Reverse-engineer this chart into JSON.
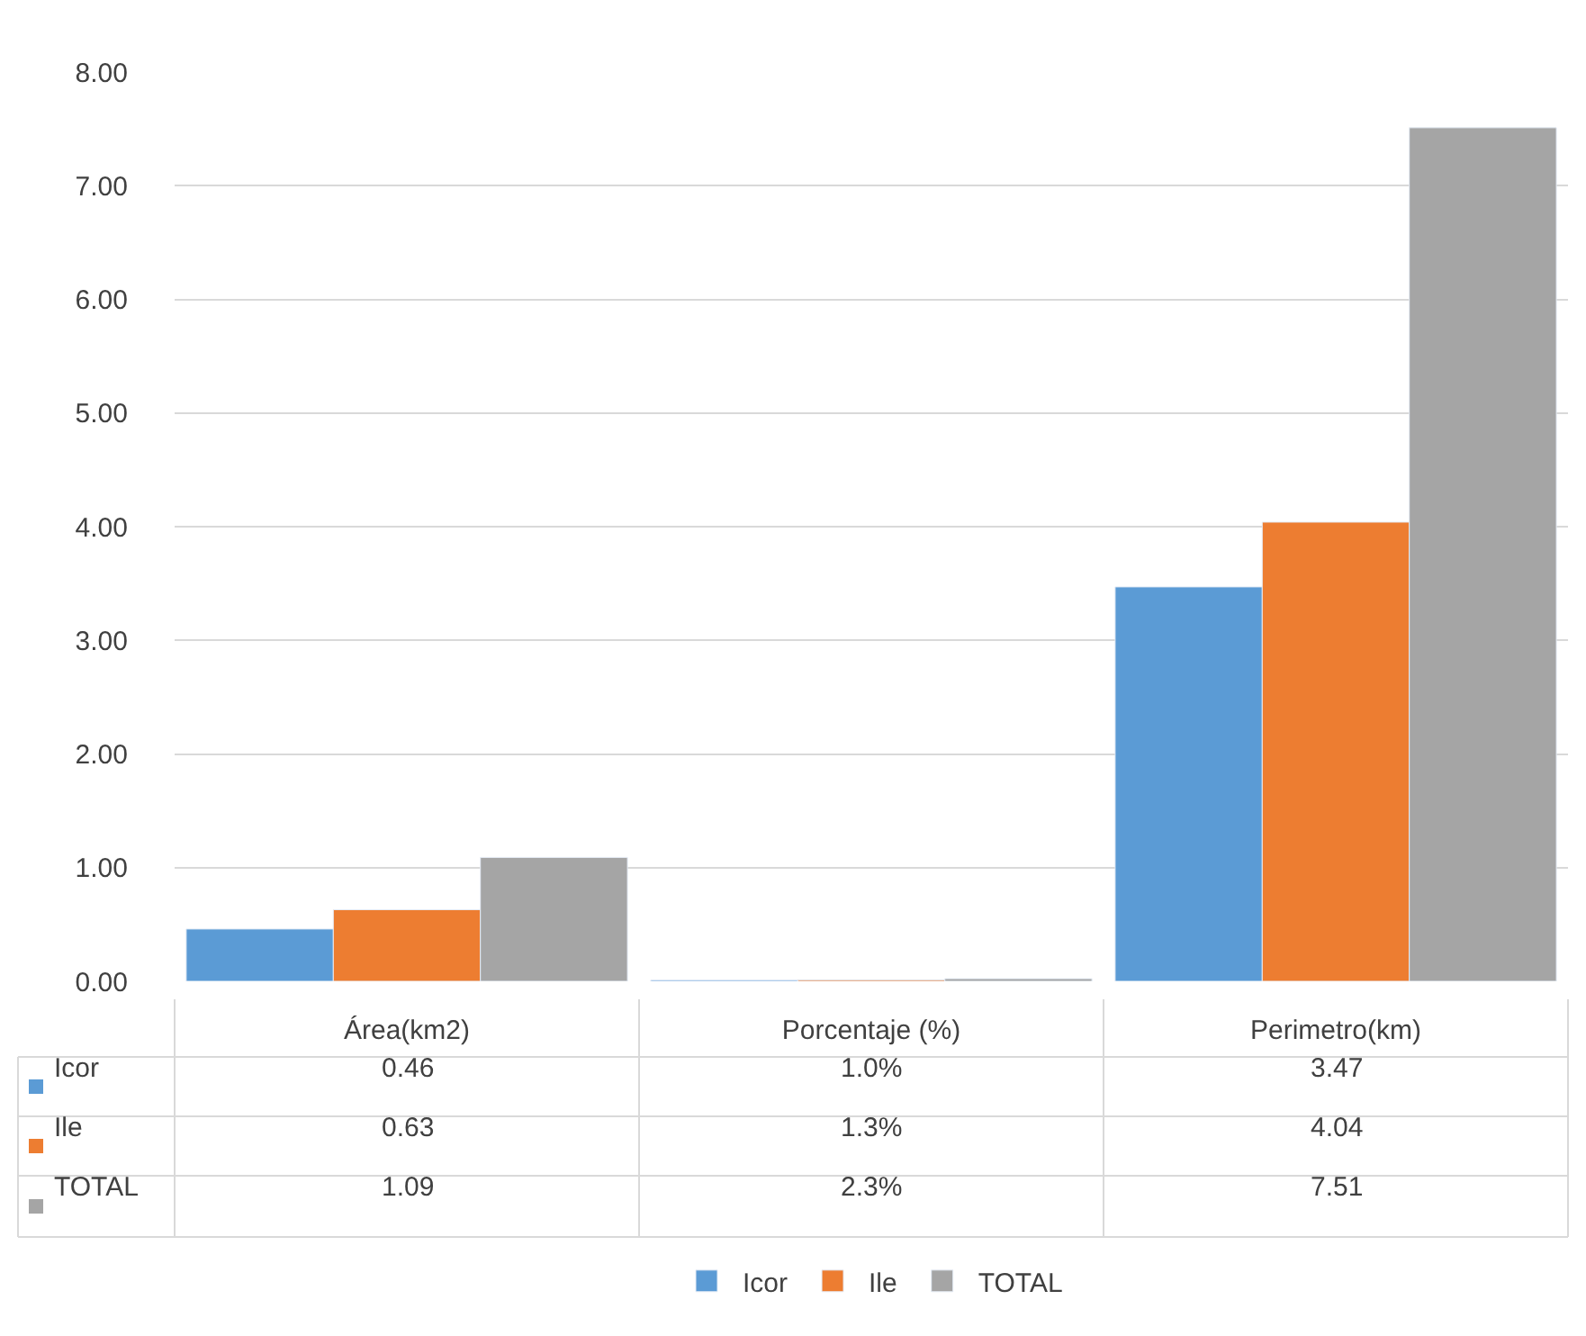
{
  "chart_data": {
    "type": "bar",
    "categories": [
      "Área(km2)",
      "Porcentaje (%)",
      "Perimetro(km)"
    ],
    "series": [
      {
        "name": "Icor",
        "color": "#5b9bd5",
        "values": [
          0.46,
          0.01,
          3.47
        ],
        "value_labels": [
          "0.46",
          "1.0%",
          "3.47"
        ]
      },
      {
        "name": "Ile",
        "color": "#ed7d31",
        "values": [
          0.63,
          0.013,
          4.04
        ],
        "value_labels": [
          "0.63",
          "1.3%",
          "4.04"
        ]
      },
      {
        "name": "TOTAL",
        "color": "#a5a5a5",
        "values": [
          1.09,
          0.023,
          7.51
        ],
        "value_labels": [
          "1.09",
          "2.3%",
          "7.51"
        ]
      }
    ],
    "ylim": [
      0,
      8
    ],
    "yticks": [
      {
        "value": 0,
        "label": "0.00"
      },
      {
        "value": 1,
        "label": "1.00"
      },
      {
        "value": 2,
        "label": "2.00"
      },
      {
        "value": 3,
        "label": "3.00"
      },
      {
        "value": 4,
        "label": "4.00"
      },
      {
        "value": 5,
        "label": "5.00"
      },
      {
        "value": 6,
        "label": "6.00"
      },
      {
        "value": 7,
        "label": "7.00"
      },
      {
        "value": 8,
        "label": "8.00"
      }
    ],
    "grid": "y",
    "legend": "bottom"
  }
}
